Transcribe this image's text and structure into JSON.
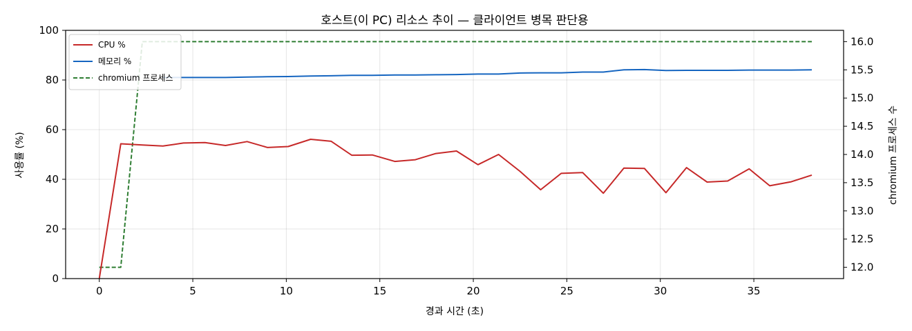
{
  "chart_data": {
    "type": "line",
    "title": "호스트(이 PC) 리소스 추이 — 클라이언트 병목 판단용",
    "xlabel": "경과 시간 (초)",
    "ylabel": "사용률 (%)",
    "y2label": "chromium 프로세스 수",
    "xlim": [
      -1.8,
      39.8
    ],
    "ylim": [
      0,
      100
    ],
    "y2lim": [
      11.8,
      16.2
    ],
    "xticks": [
      0,
      5,
      10,
      15,
      20,
      25,
      30,
      35
    ],
    "yticks": [
      0,
      20,
      40,
      60,
      80,
      100
    ],
    "y2ticks": [
      12.0,
      12.5,
      13.0,
      13.5,
      14.0,
      14.5,
      15.0,
      15.5,
      16.0
    ],
    "y2tick_labels": [
      "12.0",
      "12.5",
      "13.0",
      "13.5",
      "14.0",
      "14.5",
      "15.0",
      "15.5",
      "16.0"
    ],
    "grid": true,
    "legend_position": "top-left",
    "x": [
      0,
      1.15,
      2.3,
      3.4,
      4.5,
      5.65,
      6.75,
      7.9,
      9.0,
      10.1,
      11.3,
      12.4,
      13.5,
      14.6,
      15.8,
      16.9,
      18.0,
      19.1,
      20.25,
      21.35,
      22.5,
      23.6,
      24.7,
      25.85,
      26.95,
      28.05,
      29.15,
      30.3,
      31.4,
      32.5,
      33.6,
      34.75,
      35.85,
      37.0,
      38.1
    ],
    "series": [
      {
        "name": "CPU %",
        "axis": "left",
        "color": "#c62828",
        "style": "solid",
        "values": [
          0,
          54.3,
          53.8,
          53.4,
          54.6,
          54.8,
          53.6,
          55.2,
          52.8,
          53.2,
          56.1,
          55.3,
          49.7,
          49.8,
          47.2,
          47.9,
          50.4,
          51.4,
          45.9,
          50.0,
          43.2,
          35.8,
          42.4,
          42.7,
          34.4,
          44.5,
          44.4,
          34.6,
          44.7,
          38.9,
          39.3,
          44.2,
          37.4,
          39.0,
          41.7
        ]
      },
      {
        "name": "메모리 %",
        "axis": "left",
        "color": "#1565c0",
        "style": "solid",
        "values": [
          null,
          null,
          null,
          81.0,
          81.0,
          81.0,
          81.0,
          81.2,
          81.3,
          81.4,
          81.6,
          81.7,
          81.9,
          81.9,
          82.0,
          82.0,
          82.1,
          82.2,
          82.4,
          82.4,
          82.8,
          82.9,
          82.9,
          83.2,
          83.2,
          84.1,
          84.2,
          83.8,
          83.9,
          83.9,
          83.9,
          84.0,
          84.0,
          84.0,
          84.1
        ]
      },
      {
        "name": "chromium 프로세스",
        "axis": "right",
        "color": "#2e7d32",
        "style": "dashed",
        "values": [
          12,
          12,
          16,
          16,
          16,
          16,
          16,
          16,
          16,
          16,
          16,
          16,
          16,
          16,
          16,
          16,
          16,
          16,
          16,
          16,
          16,
          16,
          16,
          16,
          16,
          16,
          16,
          16,
          16,
          16,
          16,
          16,
          16,
          16,
          16
        ]
      }
    ]
  }
}
